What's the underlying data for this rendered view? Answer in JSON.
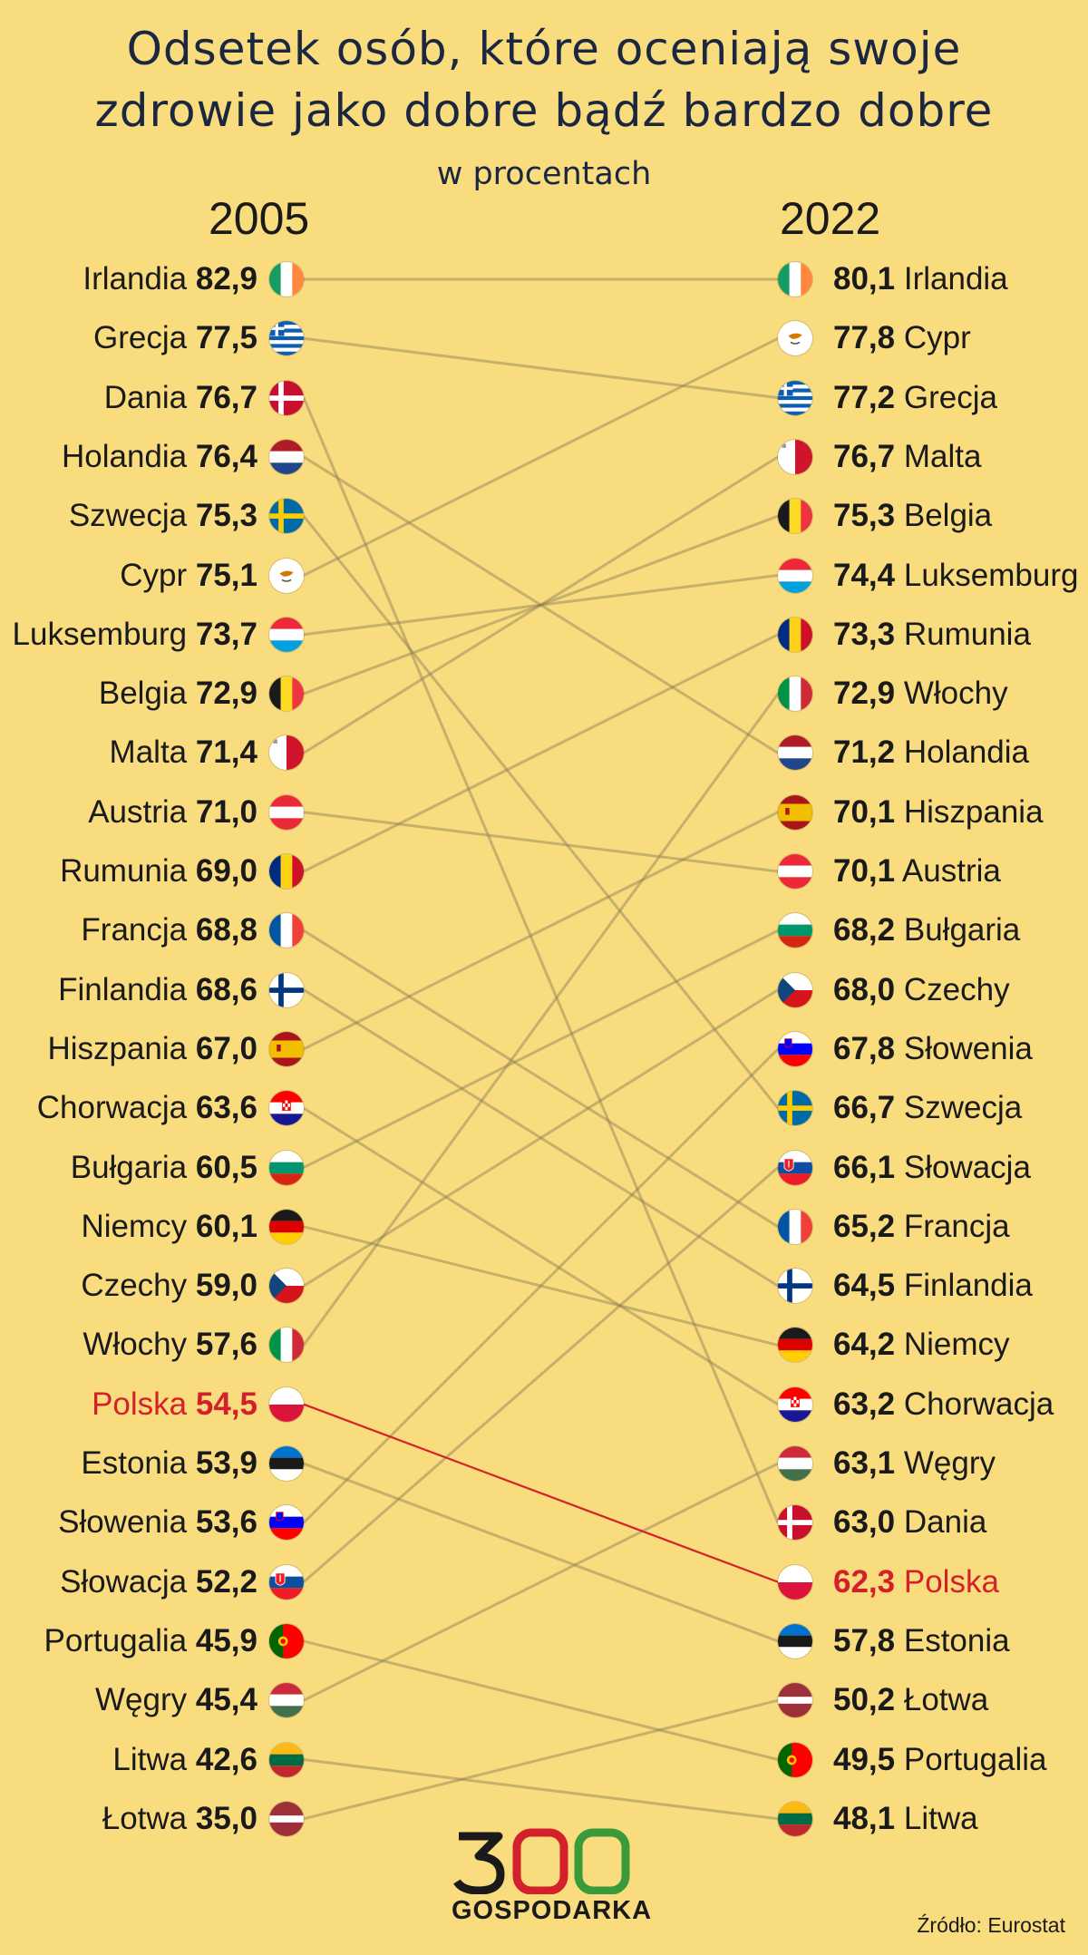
{
  "title_lines": [
    "Odsetek osób, które oceniają swoje",
    "zdrowie jako dobre bądź bardzo dobre"
  ],
  "subtitle": "w procentach",
  "source": "Źródło: Eurostat",
  "logo": {
    "number": "300",
    "word": "GOSPODARKA"
  },
  "colors": {
    "background": "#f8dc7e",
    "highlight": "#d4202b",
    "connector": "#8a7a55",
    "title": "#1b2740"
  },
  "chart_data": {
    "type": "slope",
    "title": "Odsetek osób, które oceniają swoje zdrowie jako dobre bądź bardzo dobre",
    "subtitle": "w procentach",
    "x": [
      "2005",
      "2022"
    ],
    "highlight": "Polska",
    "left": [
      {
        "country": "Irlandia",
        "value": "82,9",
        "flag": "ie"
      },
      {
        "country": "Grecja",
        "value": "77,5",
        "flag": "gr"
      },
      {
        "country": "Dania",
        "value": "76,7",
        "flag": "dk"
      },
      {
        "country": "Holandia",
        "value": "76,4",
        "flag": "nl"
      },
      {
        "country": "Szwecja",
        "value": "75,3",
        "flag": "se"
      },
      {
        "country": "Cypr",
        "value": "75,1",
        "flag": "cy"
      },
      {
        "country": "Luksemburg",
        "value": "73,7",
        "flag": "lu"
      },
      {
        "country": "Belgia",
        "value": "72,9",
        "flag": "be"
      },
      {
        "country": "Malta",
        "value": "71,4",
        "flag": "mt"
      },
      {
        "country": "Austria",
        "value": "71,0",
        "flag": "at"
      },
      {
        "country": "Rumunia",
        "value": "69,0",
        "flag": "ro"
      },
      {
        "country": "Francja",
        "value": "68,8",
        "flag": "fr"
      },
      {
        "country": "Finlandia",
        "value": "68,6",
        "flag": "fi"
      },
      {
        "country": "Hiszpania",
        "value": "67,0",
        "flag": "es"
      },
      {
        "country": "Chorwacja",
        "value": "63,6",
        "flag": "hr"
      },
      {
        "country": "Bułgaria",
        "value": "60,5",
        "flag": "bg"
      },
      {
        "country": "Niemcy",
        "value": "60,1",
        "flag": "de"
      },
      {
        "country": "Czechy",
        "value": "59,0",
        "flag": "cz"
      },
      {
        "country": "Włochy",
        "value": "57,6",
        "flag": "it"
      },
      {
        "country": "Polska",
        "value": "54,5",
        "flag": "pl"
      },
      {
        "country": "Estonia",
        "value": "53,9",
        "flag": "ee"
      },
      {
        "country": "Słowenia",
        "value": "53,6",
        "flag": "si"
      },
      {
        "country": "Słowacja",
        "value": "52,2",
        "flag": "sk"
      },
      {
        "country": "Portugalia",
        "value": "45,9",
        "flag": "pt"
      },
      {
        "country": "Węgry",
        "value": "45,4",
        "flag": "hu"
      },
      {
        "country": "Litwa",
        "value": "42,6",
        "flag": "lt"
      },
      {
        "country": "Łotwa",
        "value": "35,0",
        "flag": "lv"
      }
    ],
    "right": [
      {
        "country": "Irlandia",
        "value": "80,1",
        "flag": "ie"
      },
      {
        "country": "Cypr",
        "value": "77,8",
        "flag": "cy"
      },
      {
        "country": "Grecja",
        "value": "77,2",
        "flag": "gr"
      },
      {
        "country": "Malta",
        "value": "76,7",
        "flag": "mt"
      },
      {
        "country": "Belgia",
        "value": "75,3",
        "flag": "be"
      },
      {
        "country": "Luksemburg",
        "value": "74,4",
        "flag": "lu"
      },
      {
        "country": "Rumunia",
        "value": "73,3",
        "flag": "ro"
      },
      {
        "country": "Włochy",
        "value": "72,9",
        "flag": "it"
      },
      {
        "country": "Holandia",
        "value": "71,2",
        "flag": "nl"
      },
      {
        "country": "Hiszpania",
        "value": "70,1",
        "flag": "es"
      },
      {
        "country": "Austria",
        "value": "70,1",
        "flag": "at"
      },
      {
        "country": "Bułgaria",
        "value": "68,2",
        "flag": "bg"
      },
      {
        "country": "Czechy",
        "value": "68,0",
        "flag": "cz"
      },
      {
        "country": "Słowenia",
        "value": "67,8",
        "flag": "si"
      },
      {
        "country": "Szwecja",
        "value": "66,7",
        "flag": "se"
      },
      {
        "country": "Słowacja",
        "value": "66,1",
        "flag": "sk"
      },
      {
        "country": "Francja",
        "value": "65,2",
        "flag": "fr"
      },
      {
        "country": "Finlandia",
        "value": "64,5",
        "flag": "fi"
      },
      {
        "country": "Niemcy",
        "value": "64,2",
        "flag": "de"
      },
      {
        "country": "Chorwacja",
        "value": "63,2",
        "flag": "hr"
      },
      {
        "country": "Węgry",
        "value": "63,1",
        "flag": "hu"
      },
      {
        "country": "Dania",
        "value": "63,0",
        "flag": "dk"
      },
      {
        "country": "Polska",
        "value": "62,3",
        "flag": "pl"
      },
      {
        "country": "Estonia",
        "value": "57,8",
        "flag": "ee"
      },
      {
        "country": "Łotwa",
        "value": "50,2",
        "flag": "lv"
      },
      {
        "country": "Portugalia",
        "value": "49,5",
        "flag": "pt"
      },
      {
        "country": "Litwa",
        "value": "48,1",
        "flag": "lt"
      }
    ]
  }
}
